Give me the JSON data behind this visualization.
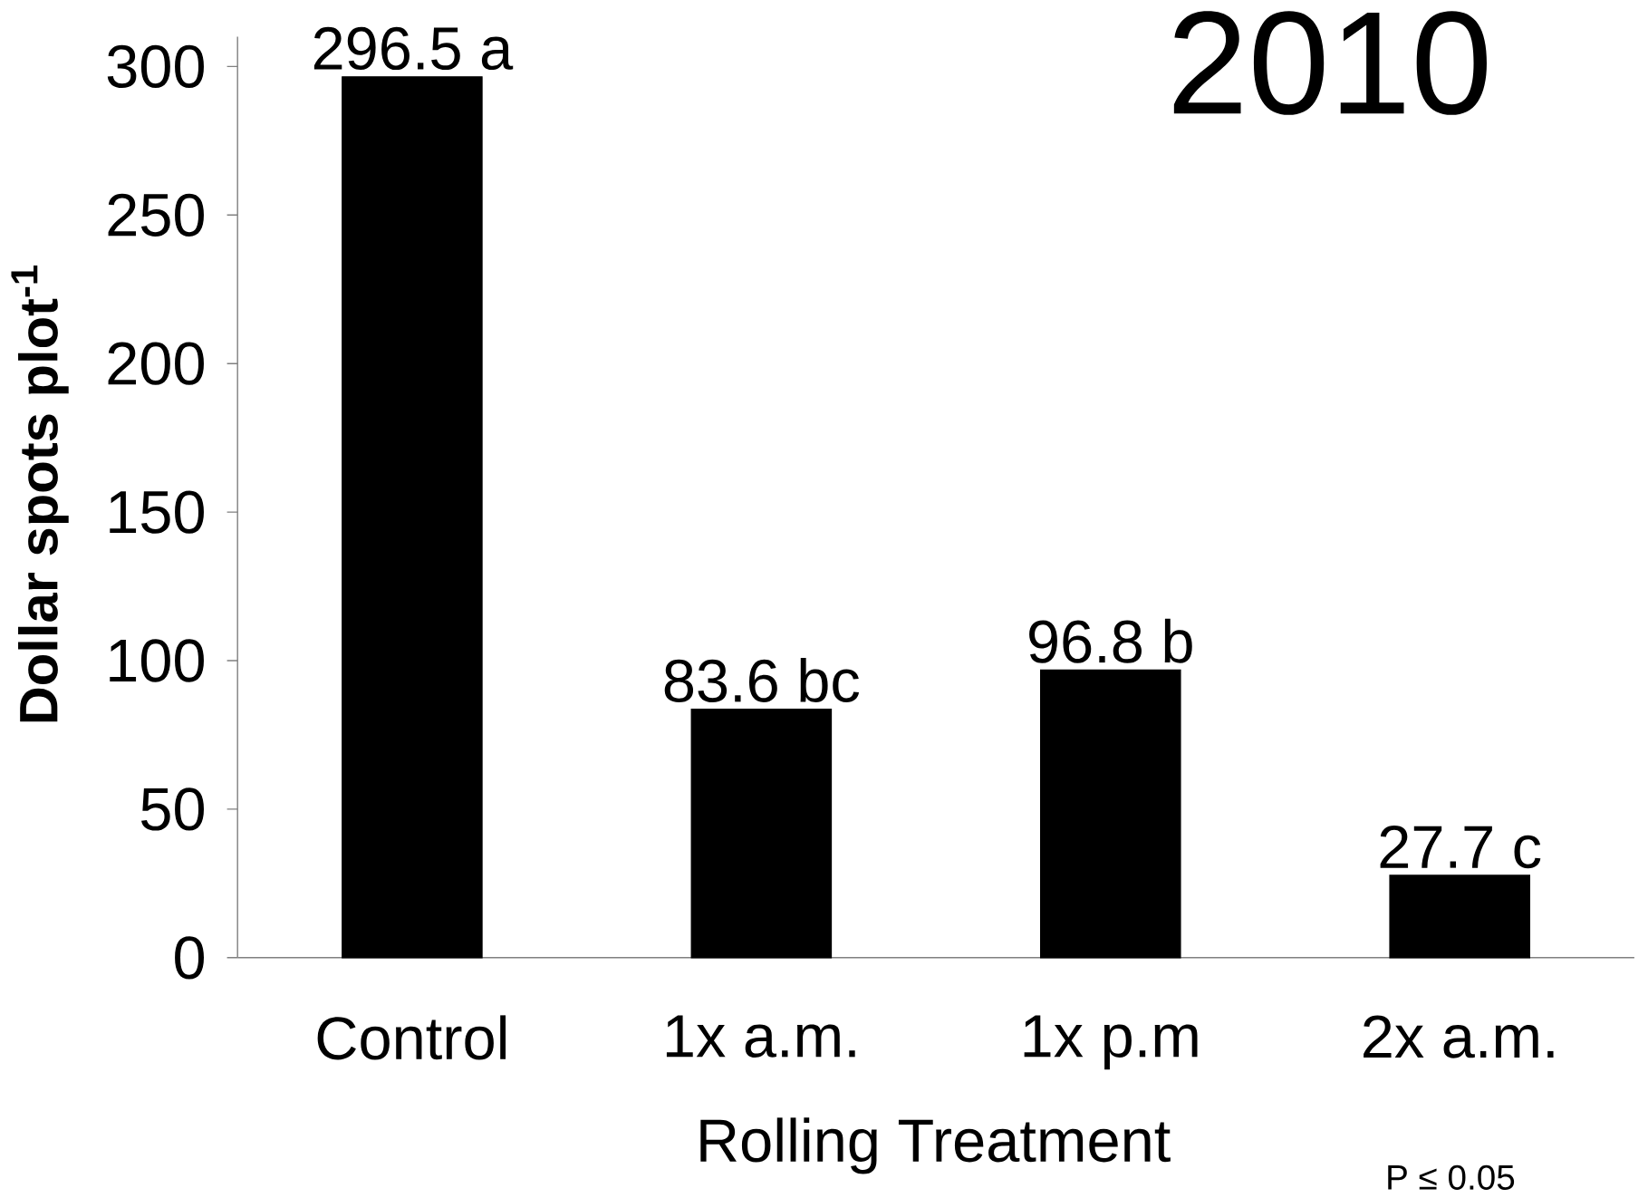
{
  "chart_data": {
    "type": "bar",
    "title": "2010",
    "xlabel": "Rolling Treatment",
    "ylabel": "Dollar spots  plot$^{-1}$",
    "categories": [
      "Control",
      "1x a.m.",
      "1x p.m",
      "2x a.m."
    ],
    "values": [
      296.5,
      83.6,
      96.8,
      27.7
    ],
    "value_labels": [
      "296.5 a",
      "83.6 bc",
      "96.8 b",
      "27.7 c"
    ],
    "color": "#000000",
    "ylim": [
      0,
      310
    ],
    "yticks": [
      0,
      50,
      100,
      150,
      200,
      250,
      300
    ],
    "annotations": [
      "P ≤ 0.05"
    ]
  }
}
